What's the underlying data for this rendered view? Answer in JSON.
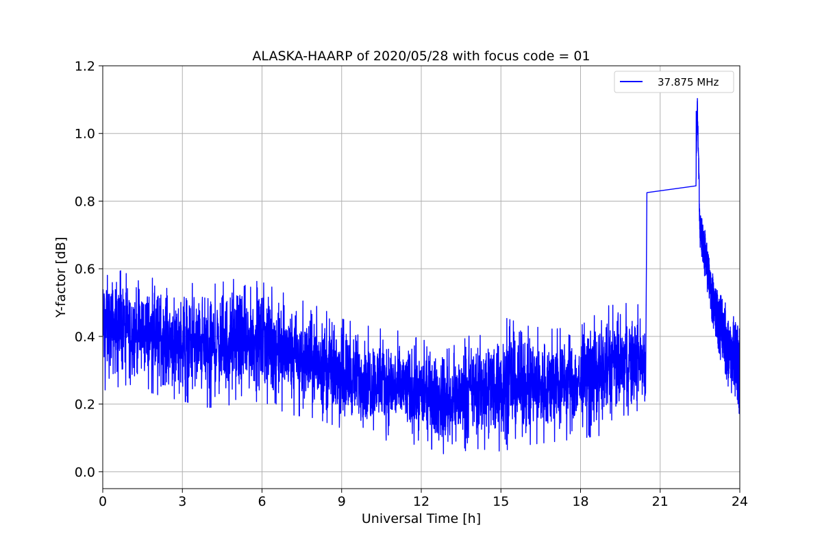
{
  "chart_data": {
    "type": "line",
    "title": "ALASKA-HAARP of 2020/05/28 with focus code = 01",
    "xlabel": "Universal Time [h]",
    "ylabel": "Y-factor [dB]",
    "xlim": [
      0,
      24
    ],
    "ylim": [
      -0.05,
      1.2
    ],
    "xticks": [
      0,
      3,
      6,
      9,
      12,
      15,
      18,
      21,
      24
    ],
    "xtick_labels": [
      "0",
      "3",
      "6",
      "9",
      "12",
      "15",
      "18",
      "21",
      "24"
    ],
    "yticks": [
      0.0,
      0.2,
      0.4,
      0.6,
      0.8,
      1.0,
      1.2
    ],
    "ytick_labels": [
      "0.0",
      "0.2",
      "0.4",
      "0.6",
      "0.8",
      "1.0",
      "1.2"
    ],
    "grid": true,
    "legend_position": "top-right",
    "series": [
      {
        "name": "37.875 MHz",
        "color": "#0000ff",
        "x": [
          0,
          1,
          2,
          3,
          4,
          5,
          6,
          7,
          8,
          9,
          10,
          11,
          12,
          13,
          14,
          15,
          16,
          17,
          18,
          19,
          20,
          20.45,
          20.5,
          22.35,
          22.4,
          22.5,
          23,
          23.5,
          24
        ],
        "y": [
          0.4,
          0.41,
          0.39,
          0.36,
          0.34,
          0.35,
          0.36,
          0.33,
          0.3,
          0.28,
          0.27,
          0.26,
          0.23,
          0.22,
          0.24,
          0.25,
          0.25,
          0.26,
          0.25,
          0.27,
          0.3,
          0.3,
          0.825,
          0.845,
          1.1,
          0.72,
          0.5,
          0.38,
          0.3
        ],
        "noise_envelope": {
          "x": [
            0,
            1,
            2,
            3,
            4,
            5,
            6,
            7,
            8,
            9,
            10,
            11,
            12,
            13,
            14,
            15,
            16,
            17,
            18,
            19,
            20,
            20.45
          ],
          "min": [
            0.23,
            0.25,
            0.22,
            0.2,
            0.18,
            0.19,
            0.2,
            0.16,
            0.15,
            0.12,
            0.1,
            0.08,
            0.07,
            0.04,
            0.06,
            0.05,
            0.07,
            0.08,
            0.09,
            0.1,
            0.14,
            0.17
          ],
          "max": [
            0.63,
            0.59,
            0.58,
            0.57,
            0.56,
            0.58,
            0.57,
            0.53,
            0.5,
            0.46,
            0.44,
            0.42,
            0.4,
            0.37,
            0.42,
            0.47,
            0.44,
            0.43,
            0.44,
            0.5,
            0.51,
            0.49
          ]
        }
      }
    ]
  }
}
